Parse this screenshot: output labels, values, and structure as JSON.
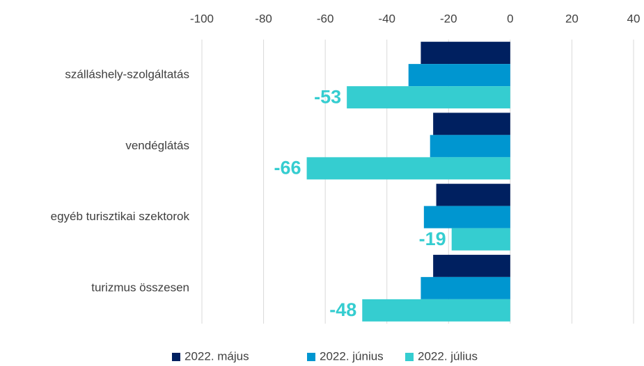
{
  "chart_data": {
    "type": "barh",
    "categories": [
      "szálláshely-szolgáltatás",
      "vendéglátás",
      "egyéb turisztikai szektorok",
      "turizmus összesen"
    ],
    "series": [
      {
        "name": "2022. május",
        "color": "#002060",
        "values": [
          -29,
          -25,
          -24,
          -25
        ]
      },
      {
        "name": "2022. június",
        "color": "#0096d0",
        "values": [
          -33,
          -26,
          -28,
          -29
        ]
      },
      {
        "name": "2022. július",
        "color": "#35cdd0",
        "values": [
          -53,
          -66,
          -19,
          -48
        ],
        "data_labels": true
      }
    ],
    "xlim": [
      -100,
      40
    ],
    "xticks": [
      -100,
      -80,
      -60,
      -40,
      -20,
      0,
      20,
      40
    ],
    "grid": true,
    "legend": "bottom"
  }
}
